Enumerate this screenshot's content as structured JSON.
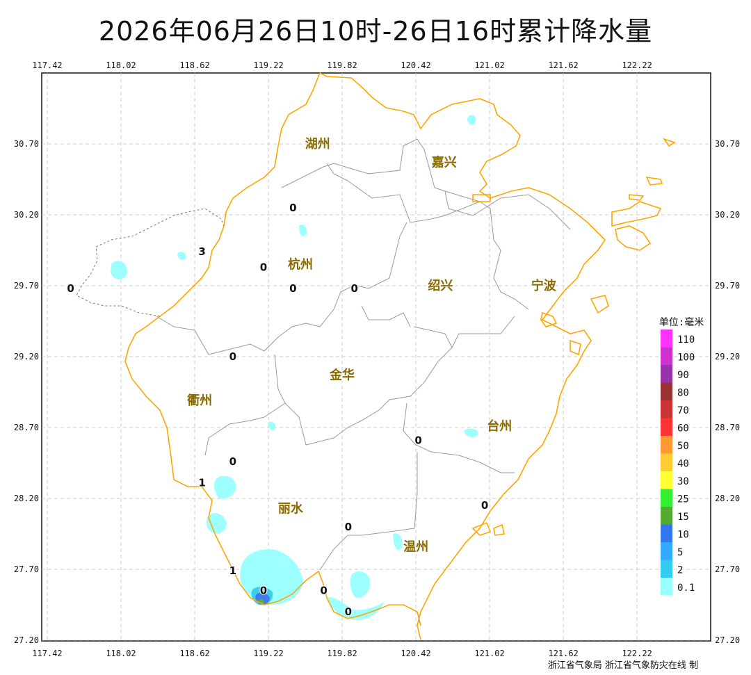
{
  "title": "2026年06月26日10时-26日16时累计降水量",
  "credit": "浙江省气象局 浙江省气象防灾在线 制",
  "axes": {
    "lon_ticks": [
      "117.42",
      "118.02",
      "118.62",
      "119.22",
      "119.82",
      "120.42",
      "121.02",
      "121.62",
      "122.22"
    ],
    "lat_ticks": [
      "30.70",
      "30.20",
      "29.70",
      "29.20",
      "28.70",
      "28.20",
      "27.70",
      "27.20"
    ]
  },
  "cities": [
    {
      "name": "湖州",
      "lon": 119.62,
      "lat": 30.7
    },
    {
      "name": "嘉兴",
      "lon": 120.65,
      "lat": 30.57
    },
    {
      "name": "杭州",
      "lon": 119.48,
      "lat": 29.85
    },
    {
      "name": "绍兴",
      "lon": 120.62,
      "lat": 29.7
    },
    {
      "name": "宁波",
      "lon": 121.46,
      "lat": 29.7
    },
    {
      "name": "衢州",
      "lon": 118.66,
      "lat": 28.89
    },
    {
      "name": "金华",
      "lon": 119.82,
      "lat": 29.07
    },
    {
      "name": "台州",
      "lon": 121.1,
      "lat": 28.71
    },
    {
      "name": "丽水",
      "lon": 119.4,
      "lat": 28.13
    },
    {
      "name": "温州",
      "lon": 120.42,
      "lat": 27.86
    }
  ],
  "stations": [
    {
      "value": "0",
      "lon": 119.42,
      "lat": 30.25
    },
    {
      "value": "3",
      "lon": 118.68,
      "lat": 29.94
    },
    {
      "value": "0",
      "lon": 119.18,
      "lat": 29.83
    },
    {
      "value": "0",
      "lon": 117.61,
      "lat": 29.68
    },
    {
      "value": "0",
      "lon": 119.42,
      "lat": 29.68
    },
    {
      "value": "0",
      "lon": 119.92,
      "lat": 29.68
    },
    {
      "value": "0",
      "lon": 118.93,
      "lat": 29.2
    },
    {
      "value": "0",
      "lon": 120.44,
      "lat": 28.61
    },
    {
      "value": "0",
      "lon": 118.93,
      "lat": 28.46
    },
    {
      "value": "1",
      "lon": 118.68,
      "lat": 28.31
    },
    {
      "value": "0",
      "lon": 120.98,
      "lat": 28.15
    },
    {
      "value": "0",
      "lon": 119.87,
      "lat": 28.0
    },
    {
      "value": "1",
      "lon": 118.93,
      "lat": 27.69
    },
    {
      "value": "0",
      "lon": 119.18,
      "lat": 27.55
    },
    {
      "value": "0",
      "lon": 119.67,
      "lat": 27.55
    },
    {
      "value": "0",
      "lon": 119.87,
      "lat": 27.4
    }
  ],
  "legend": {
    "title": "单位:毫米",
    "items": [
      {
        "label": "110",
        "color": "#ff33ff"
      },
      {
        "label": "100",
        "color": "#cc33cc"
      },
      {
        "label": "90",
        "color": "#9933aa"
      },
      {
        "label": "80",
        "color": "#993333"
      },
      {
        "label": "70",
        "color": "#cc3333"
      },
      {
        "label": "60",
        "color": "#ff3333"
      },
      {
        "label": "50",
        "color": "#ff9933"
      },
      {
        "label": "40",
        "color": "#ffcc33"
      },
      {
        "label": "30",
        "color": "#ffff33"
      },
      {
        "label": "25",
        "color": "#33ee33"
      },
      {
        "label": "15",
        "color": "#55aa33"
      },
      {
        "label": "10",
        "color": "#3377ee"
      },
      {
        "label": "5",
        "color": "#33aaff"
      },
      {
        "label": "2",
        "color": "#33ccee"
      },
      {
        "label": "0.1",
        "color": "#99ffff"
      }
    ]
  },
  "colors": {
    "province_border": "#ffa500",
    "city_border": "#999999",
    "grid": "#cccccc"
  }
}
